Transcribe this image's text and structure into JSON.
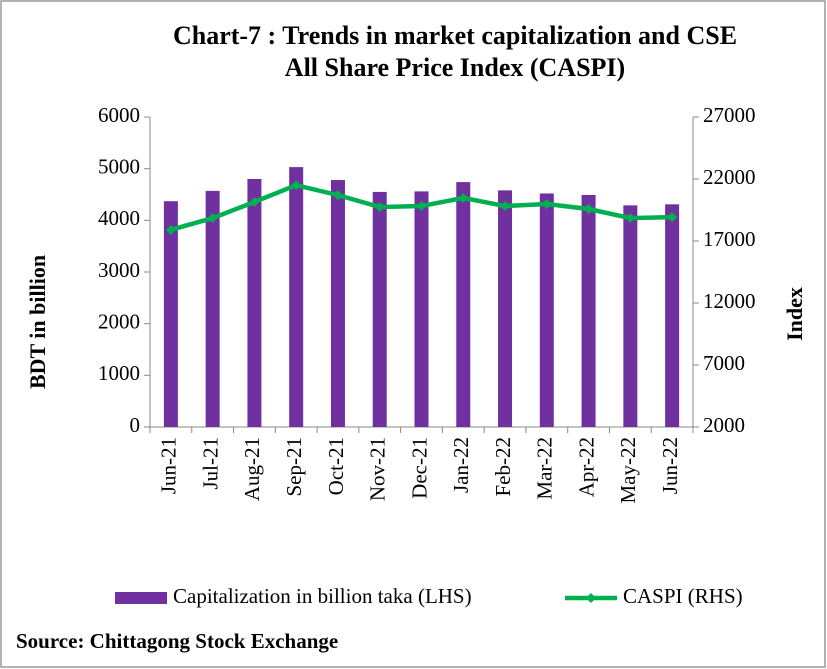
{
  "chart_data": {
    "type": "bar-line",
    "title": [
      "Chart-7 : Trends in market capitalization and CSE",
      "All Share Price Index (CASPI)"
    ],
    "ylabel": "BDT in billion",
    "y2label": "Index",
    "categories": [
      "Jun-21",
      "Jul-21",
      "Aug-21",
      "Sep-21",
      "Oct-21",
      "Nov-21",
      "Dec-21",
      "Jan-22",
      "Feb-22",
      "Mar-22",
      "Apr-22",
      "May-22",
      "Jun-22"
    ],
    "series": [
      {
        "name": "Capitalization in billion taka (LHS)",
        "type": "bar",
        "color": "#7030a0",
        "values": [
          4370,
          4570,
          4800,
          5030,
          4780,
          4550,
          4560,
          4740,
          4580,
          4520,
          4490,
          4290,
          4310
        ]
      },
      {
        "name": "CASPI (RHS)",
        "type": "line",
        "axis": "y2",
        "color": "#00b050",
        "values": [
          17900,
          18850,
          20150,
          21500,
          20700,
          19740,
          19820,
          20470,
          19820,
          19980,
          19580,
          18850,
          18930
        ]
      }
    ],
    "ylim": [
      0,
      6000
    ],
    "yticks": [
      0,
      1000,
      2000,
      3000,
      4000,
      5000,
      6000
    ],
    "y2lim": [
      2000,
      27000
    ],
    "y2ticks": [
      2000,
      7000,
      12000,
      17000,
      22000,
      27000
    ],
    "legend": "bottom",
    "source": "Source: Chittagong Stock Exchange"
  }
}
